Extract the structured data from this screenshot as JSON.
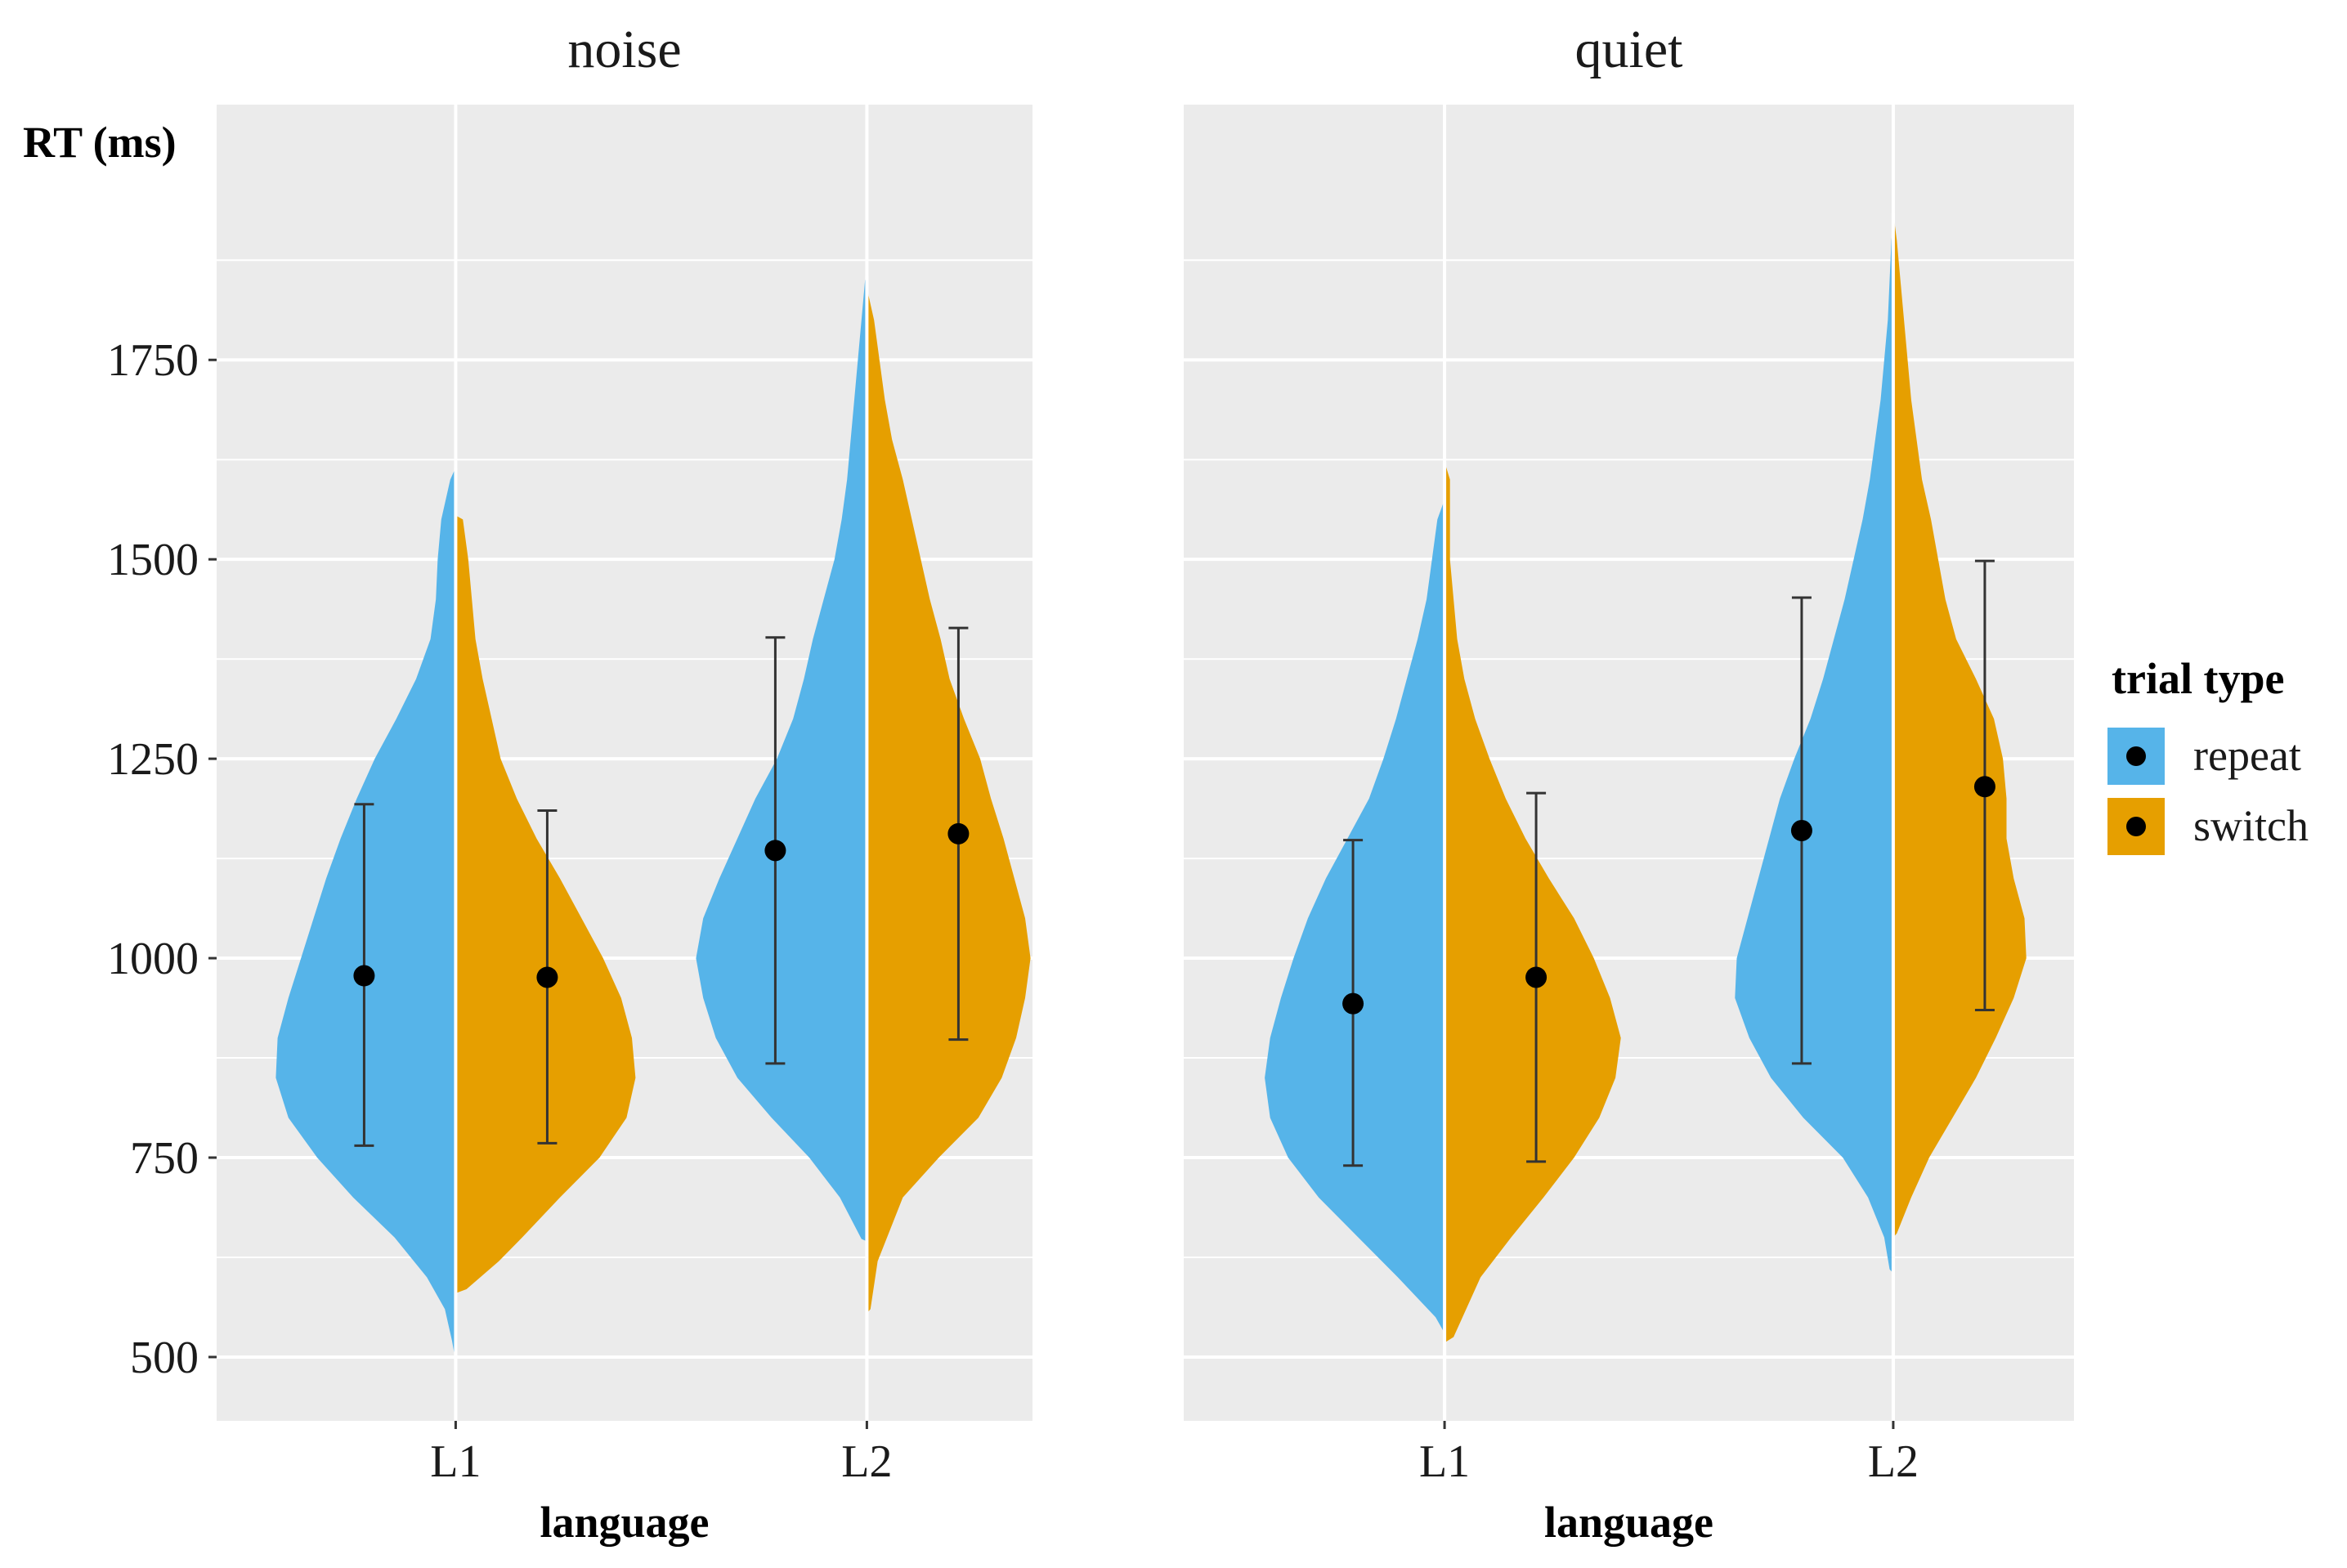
{
  "chart_data": {
    "type": "violin",
    "ylabel": "RT (ms)",
    "xlabel": "language",
    "categories": [
      "L1",
      "L2"
    ],
    "y_ticks": [
      500,
      750,
      1000,
      1250,
      1500,
      1750
    ],
    "ylim": [
      420,
      2070
    ],
    "grid": true,
    "legend": {
      "title": "trial type",
      "position": "right",
      "entries": [
        {
          "label": "repeat",
          "color": "#56B4E9"
        },
        {
          "label": "switch",
          "color": "#E69F00"
        }
      ]
    },
    "colors": {
      "repeat": "#56B4E9",
      "switch": "#E69F00",
      "panel_bg": "#EBEBEB",
      "grid": "#ffffff",
      "point": "#000000"
    },
    "facets": [
      {
        "title": "noise",
        "groups": [
          {
            "category": "L1",
            "repeat": {
              "mean": 978,
              "ci_low": 765,
              "ci_high": 1193,
              "density": [
                [
                  495,
                  0.0
                ],
                [
                  520,
                  0.02
                ],
                [
                  560,
                  0.06
                ],
                [
                  600,
                  0.16
                ],
                [
                  650,
                  0.34
                ],
                [
                  700,
                  0.57
                ],
                [
                  750,
                  0.77
                ],
                [
                  800,
                  0.93
                ],
                [
                  850,
                  1.0
                ],
                [
                  900,
                  0.99
                ],
                [
                  950,
                  0.93
                ],
                [
                  1000,
                  0.86
                ],
                [
                  1050,
                  0.79
                ],
                [
                  1100,
                  0.72
                ],
                [
                  1150,
                  0.64
                ],
                [
                  1200,
                  0.55
                ],
                [
                  1250,
                  0.45
                ],
                [
                  1300,
                  0.33
                ],
                [
                  1350,
                  0.22
                ],
                [
                  1400,
                  0.14
                ],
                [
                  1450,
                  0.11
                ],
                [
                  1500,
                  0.1
                ],
                [
                  1550,
                  0.08
                ],
                [
                  1600,
                  0.03
                ],
                [
                  1615,
                  0.0
                ]
              ]
            },
            "switch": {
              "mean": 976,
              "ci_low": 768,
              "ci_high": 1185,
              "density": [
                [
                  580,
                  0.0
                ],
                [
                  585,
                  0.06
                ],
                [
                  620,
                  0.24
                ],
                [
                  650,
                  0.37
                ],
                [
                  700,
                  0.58
                ],
                [
                  750,
                  0.8
                ],
                [
                  800,
                  0.95
                ],
                [
                  850,
                  1.0
                ],
                [
                  900,
                  0.98
                ],
                [
                  950,
                  0.92
                ],
                [
                  1000,
                  0.82
                ],
                [
                  1050,
                  0.7
                ],
                [
                  1100,
                  0.58
                ],
                [
                  1150,
                  0.45
                ],
                [
                  1200,
                  0.34
                ],
                [
                  1250,
                  0.25
                ],
                [
                  1300,
                  0.2
                ],
                [
                  1350,
                  0.15
                ],
                [
                  1400,
                  0.11
                ],
                [
                  1450,
                  0.09
                ],
                [
                  1500,
                  0.07
                ],
                [
                  1550,
                  0.04
                ],
                [
                  1555,
                  0.0
                ]
              ]
            }
          },
          {
            "category": "L2",
            "repeat": {
              "mean": 1135,
              "ci_low": 868,
              "ci_high": 1402,
              "density": [
                [
                  645,
                  0.0
                ],
                [
                  648,
                  0.03
                ],
                [
                  700,
                  0.15
                ],
                [
                  750,
                  0.32
                ],
                [
                  800,
                  0.53
                ],
                [
                  850,
                  0.72
                ],
                [
                  900,
                  0.84
                ],
                [
                  950,
                  0.91
                ],
                [
                  1000,
                  0.95
                ],
                [
                  1050,
                  0.91
                ],
                [
                  1100,
                  0.82
                ],
                [
                  1150,
                  0.72
                ],
                [
                  1200,
                  0.62
                ],
                [
                  1250,
                  0.5
                ],
                [
                  1300,
                  0.41
                ],
                [
                  1350,
                  0.35
                ],
                [
                  1400,
                  0.3
                ],
                [
                  1450,
                  0.24
                ],
                [
                  1500,
                  0.18
                ],
                [
                  1550,
                  0.14
                ],
                [
                  1600,
                  0.11
                ],
                [
                  1650,
                  0.09
                ],
                [
                  1700,
                  0.07
                ],
                [
                  1750,
                  0.05
                ],
                [
                  1800,
                  0.03
                ],
                [
                  1850,
                  0.01
                ],
                [
                  1855,
                  0.0
                ]
              ]
            },
            "switch": {
              "mean": 1156,
              "ci_low": 898,
              "ci_high": 1414,
              "density": [
                [
                  555,
                  0.0
                ],
                [
                  560,
                  0.02
                ],
                [
                  620,
                  0.06
                ],
                [
                  700,
                  0.2
                ],
                [
                  750,
                  0.4
                ],
                [
                  800,
                  0.62
                ],
                [
                  850,
                  0.75
                ],
                [
                  900,
                  0.83
                ],
                [
                  950,
                  0.88
                ],
                [
                  1000,
                  0.91
                ],
                [
                  1050,
                  0.88
                ],
                [
                  1100,
                  0.82
                ],
                [
                  1150,
                  0.76
                ],
                [
                  1200,
                  0.69
                ],
                [
                  1250,
                  0.63
                ],
                [
                  1300,
                  0.54
                ],
                [
                  1350,
                  0.46
                ],
                [
                  1400,
                  0.41
                ],
                [
                  1450,
                  0.35
                ],
                [
                  1500,
                  0.3
                ],
                [
                  1550,
                  0.25
                ],
                [
                  1600,
                  0.2
                ],
                [
                  1650,
                  0.14
                ],
                [
                  1700,
                  0.1
                ],
                [
                  1750,
                  0.07
                ],
                [
                  1800,
                  0.04
                ],
                [
                  1840,
                  0.0
                ]
              ]
            }
          }
        ]
      },
      {
        "title": "quiet",
        "groups": [
          {
            "category": "L1",
            "repeat": {
              "mean": 943,
              "ci_low": 740,
              "ci_high": 1148,
              "density": [
                [
                  530,
                  0.0
                ],
                [
                  550,
                  0.05
                ],
                [
                  600,
                  0.26
                ],
                [
                  650,
                  0.48
                ],
                [
                  700,
                  0.7
                ],
                [
                  750,
                  0.87
                ],
                [
                  800,
                  0.97
                ],
                [
                  850,
                  1.0
                ],
                [
                  900,
                  0.97
                ],
                [
                  950,
                  0.91
                ],
                [
                  1000,
                  0.84
                ],
                [
                  1050,
                  0.76
                ],
                [
                  1100,
                  0.66
                ],
                [
                  1150,
                  0.54
                ],
                [
                  1200,
                  0.42
                ],
                [
                  1250,
                  0.34
                ],
                [
                  1300,
                  0.27
                ],
                [
                  1350,
                  0.21
                ],
                [
                  1400,
                  0.15
                ],
                [
                  1450,
                  0.1
                ],
                [
                  1500,
                  0.07
                ],
                [
                  1550,
                  0.04
                ],
                [
                  1575,
                  0.0
                ]
              ]
            },
            "switch": {
              "mean": 976,
              "ci_low": 745,
              "ci_high": 1207,
              "density": [
                [
                  518,
                  0.0
                ],
                [
                  525,
                  0.05
                ],
                [
                  600,
                  0.2
                ],
                [
                  650,
                  0.37
                ],
                [
                  700,
                  0.55
                ],
                [
                  750,
                  0.72
                ],
                [
                  800,
                  0.86
                ],
                [
                  850,
                  0.95
                ],
                [
                  900,
                  0.98
                ],
                [
                  950,
                  0.92
                ],
                [
                  1000,
                  0.83
                ],
                [
                  1050,
                  0.72
                ],
                [
                  1100,
                  0.58
                ],
                [
                  1150,
                  0.45
                ],
                [
                  1200,
                  0.34
                ],
                [
                  1250,
                  0.25
                ],
                [
                  1300,
                  0.17
                ],
                [
                  1350,
                  0.11
                ],
                [
                  1400,
                  0.07
                ],
                [
                  1450,
                  0.05
                ],
                [
                  1500,
                  0.03
                ],
                [
                  1550,
                  0.03
                ],
                [
                  1600,
                  0.03
                ],
                [
                  1622,
                  0.0
                ]
              ]
            }
          },
          {
            "category": "L2",
            "repeat": {
              "mean": 1160,
              "ci_low": 868,
              "ci_high": 1452,
              "density": [
                [
                  605,
                  0.0
                ],
                [
                  610,
                  0.02
                ],
                [
                  650,
                  0.05
                ],
                [
                  700,
                  0.14
                ],
                [
                  750,
                  0.28
                ],
                [
                  800,
                  0.5
                ],
                [
                  850,
                  0.68
                ],
                [
                  900,
                  0.8
                ],
                [
                  950,
                  0.88
                ],
                [
                  1000,
                  0.87
                ],
                [
                  1050,
                  0.81
                ],
                [
                  1100,
                  0.75
                ],
                [
                  1150,
                  0.69
                ],
                [
                  1200,
                  0.63
                ],
                [
                  1250,
                  0.55
                ],
                [
                  1300,
                  0.46
                ],
                [
                  1350,
                  0.39
                ],
                [
                  1400,
                  0.33
                ],
                [
                  1450,
                  0.27
                ],
                [
                  1500,
                  0.22
                ],
                [
                  1550,
                  0.17
                ],
                [
                  1600,
                  0.13
                ],
                [
                  1650,
                  0.1
                ],
                [
                  1700,
                  0.07
                ],
                [
                  1750,
                  0.05
                ],
                [
                  1800,
                  0.03
                ],
                [
                  1850,
                  0.02
                ],
                [
                  1900,
                  0.01
                ],
                [
                  1925,
                  0.0
                ]
              ]
            },
            "switch": {
              "mean": 1215,
              "ci_low": 935,
              "ci_high": 1498,
              "density": [
                [
                  650,
                  0.0
                ],
                [
                  655,
                  0.02
                ],
                [
                  700,
                  0.1
                ],
                [
                  750,
                  0.2
                ],
                [
                  800,
                  0.33
                ],
                [
                  850,
                  0.46
                ],
                [
                  900,
                  0.57
                ],
                [
                  950,
                  0.67
                ],
                [
                  1000,
                  0.74
                ],
                [
                  1050,
                  0.73
                ],
                [
                  1100,
                  0.67
                ],
                [
                  1150,
                  0.63
                ],
                [
                  1200,
                  0.63
                ],
                [
                  1250,
                  0.61
                ],
                [
                  1300,
                  0.56
                ],
                [
                  1350,
                  0.46
                ],
                [
                  1400,
                  0.35
                ],
                [
                  1450,
                  0.29
                ],
                [
                  1500,
                  0.25
                ],
                [
                  1550,
                  0.21
                ],
                [
                  1600,
                  0.16
                ],
                [
                  1650,
                  0.13
                ],
                [
                  1700,
                  0.1
                ],
                [
                  1750,
                  0.08
                ],
                [
                  1800,
                  0.06
                ],
                [
                  1850,
                  0.04
                ],
                [
                  1900,
                  0.02
                ],
                [
                  1935,
                  0.0
                ]
              ]
            }
          }
        ]
      }
    ]
  }
}
